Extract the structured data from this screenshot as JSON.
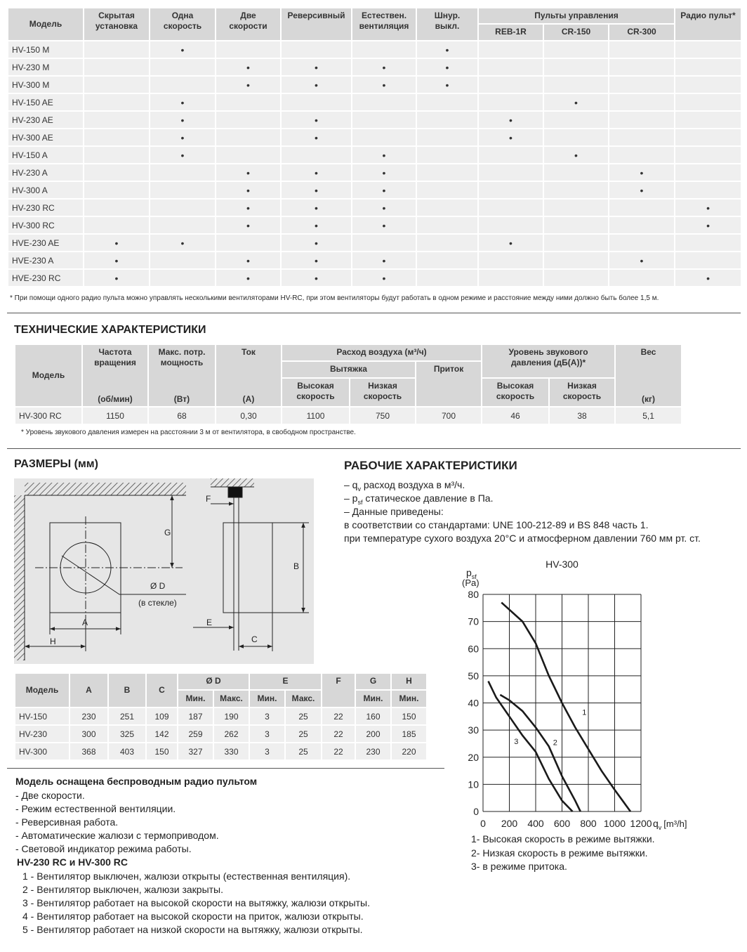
{
  "features_table": {
    "headers": [
      "Модель",
      "Скрытая\nустановка",
      "Одна\nскорость",
      "Две\nскорости",
      "Реверсивный",
      "Естествен.\nвентиляция",
      "Шнур.\nвыкл.",
      "REB-1R",
      "CR-150",
      "CR-300",
      "Радио пульт*"
    ],
    "group_header": "Пульты управления",
    "rows": [
      {
        "model": "HV-150 M",
        "cells": [
          null,
          "•",
          null,
          null,
          null,
          "•",
          null,
          null,
          null,
          null
        ]
      },
      {
        "model": "HV-230 M",
        "cells": [
          null,
          null,
          "•",
          "•",
          "•",
          "•",
          null,
          null,
          null,
          null
        ]
      },
      {
        "model": "HV-300 M",
        "cells": [
          null,
          null,
          "•",
          "•",
          "•",
          "•",
          null,
          null,
          null,
          null
        ]
      },
      {
        "model": "HV-150 AE",
        "cells": [
          null,
          "•",
          null,
          null,
          null,
          null,
          null,
          "•",
          null,
          null
        ]
      },
      {
        "model": "HV-230 AE",
        "cells": [
          null,
          "•",
          null,
          "•",
          null,
          null,
          "•",
          null,
          null,
          null
        ]
      },
      {
        "model": "HV-300 AE",
        "cells": [
          null,
          "•",
          null,
          "•",
          null,
          null,
          "•",
          null,
          null,
          null
        ]
      },
      {
        "model": "HV-150 A",
        "cells": [
          null,
          "•",
          null,
          null,
          "•",
          null,
          null,
          "•",
          null,
          null
        ]
      },
      {
        "model": "HV-230 A",
        "cells": [
          null,
          null,
          "•",
          "•",
          "•",
          null,
          null,
          null,
          "•",
          null
        ]
      },
      {
        "model": "HV-300 A",
        "cells": [
          null,
          null,
          "•",
          "•",
          "•",
          null,
          null,
          null,
          "•",
          null
        ]
      },
      {
        "model": "HV-230 RC",
        "cells": [
          null,
          null,
          "•",
          "•",
          "•",
          null,
          null,
          null,
          null,
          "•"
        ]
      },
      {
        "model": "HV-300 RC",
        "cells": [
          null,
          null,
          "•",
          "•",
          "•",
          null,
          null,
          null,
          null,
          "•"
        ]
      },
      {
        "model": "HVE-230 AE",
        "cells": [
          "•",
          "•",
          null,
          "•",
          null,
          null,
          "•",
          null,
          null,
          null
        ]
      },
      {
        "model": "HVE-230 A",
        "cells": [
          "•",
          null,
          "•",
          "•",
          "•",
          null,
          null,
          null,
          "•",
          null
        ]
      },
      {
        "model": "HVE-230 RC",
        "cells": [
          "•",
          null,
          "•",
          "•",
          "•",
          null,
          null,
          null,
          null,
          "•"
        ]
      }
    ],
    "footnote": "* При помощи одного радио пульта можно управлять несколькими вентиляторами HV-RC, при этом вентиляторы будут работать в одном режиме и расстояние между ними должно быть более 1,5 м."
  },
  "tech": {
    "title": "ТЕХНИЧЕСКИЕ ХАРАКТЕРИСТИКИ",
    "headers": {
      "model": "Модель",
      "speed": {
        "label": "Частота\nвращения",
        "unit": "(об/мин)"
      },
      "power": {
        "label": "Макс. потр.\nмощность",
        "unit": "(Вт)"
      },
      "current": {
        "label": "Ток",
        "unit": "(A)"
      },
      "airflow": "Расход воздуха (м³/ч)",
      "exhaust": "Вытяжка",
      "supply": "Приток",
      "exhaust_high": "Высокая\nскорость",
      "exhaust_low": "Низкая\nскорость",
      "sound": "Уровень звукового\nдавления (дБ(А))*",
      "sound_high": "Высокая\nскорость",
      "sound_low": "Низкая\nскорость",
      "weight": {
        "label": "Вес",
        "unit": "(кг)"
      }
    },
    "rows": [
      [
        "HV-300 RC",
        "1150",
        "68",
        "0,30",
        "1100",
        "750",
        "700",
        "46",
        "38",
        "5,1"
      ]
    ],
    "footnote": "* Уровень звукового давления измерен на расстоянии 3 м от вентилятора, в свободном пространстве."
  },
  "dimensions": {
    "title": "РАЗМЕРЫ (мм)",
    "drawing_labels": {
      "F": "F",
      "G": "G",
      "B": "B",
      "D": "Ø D",
      "glass": "(в стекле)",
      "A": "A",
      "H": "H",
      "E": "E",
      "C": "C"
    },
    "headers": [
      "Модель",
      "A",
      "B",
      "C",
      "Ø D",
      "E",
      "F",
      "G",
      "H"
    ],
    "sub_headers": [
      "Мин.",
      "Макс.",
      "Мин.",
      "Макс.",
      "Мин.",
      "Мин."
    ],
    "rows": [
      [
        "HV-150",
        "230",
        "251",
        "109",
        "187",
        "190",
        "3",
        "25",
        "22",
        "160",
        "150"
      ],
      [
        "HV-230",
        "300",
        "325",
        "142",
        "259",
        "262",
        "3",
        "25",
        "22",
        "200",
        "185"
      ],
      [
        "HV-300",
        "368",
        "403",
        "150",
        "327",
        "330",
        "3",
        "25",
        "22",
        "230",
        "220"
      ]
    ]
  },
  "radio_features": {
    "title": "Модель оснащена беспроводным радио пультом",
    "items": [
      "- Две скорости.",
      "- Режим естественной вентиляции.",
      "- Реверсивная работа.",
      "- Автоматические жалюзи с термоприводом.",
      "- Световой индикатор режима работы."
    ],
    "subtitle": "HV-230 RC и HV-300 RC",
    "modes": [
      "1 - Вентилятор выключен, жалюзи открыты (естественная вентиляция).",
      "2 - Вентилятор выключен, жалюзи закрыты.",
      "3 - Вентилятор работает на высокой скорости на вытяжку, жалюзи открыты.",
      "4 - Вентилятор работает на высокой скорости на приток, жалюзи открыты.",
      "5 - Вентилятор работает на низкой скорости на вытяжку, жалюзи открыты."
    ]
  },
  "performance": {
    "title": "РАБОЧИЕ ХАРАКТЕРИСТИКИ",
    "notes": [
      [
        "– q",
        "v",
        " расход воздуха в м³/ч."
      ],
      [
        "– p",
        "sf",
        " статическое давление в Па."
      ],
      [
        "– Данные приведены:"
      ],
      [
        "в соответствии со стандартами: UNE 100-212-89 и BS 848 часть 1."
      ],
      [
        "при температуре сухого воздуха 20°С и атмосферном давлении 760 мм рт. ст."
      ]
    ]
  },
  "chart_data": {
    "type": "line",
    "title": "HV-300",
    "y_label": {
      "main": "p",
      "sub": "sf",
      "unit": "(Pa)"
    },
    "x_label": {
      "main": "q",
      "sub": "v",
      "unit": "[m³/h]"
    },
    "xlim": [
      0,
      1200
    ],
    "ylim": [
      0,
      80
    ],
    "xticks": [
      0,
      200,
      400,
      600,
      800,
      1000,
      1200
    ],
    "yticks": [
      0,
      10,
      20,
      30,
      40,
      50,
      60,
      70,
      80
    ],
    "grid": true,
    "series": [
      {
        "name": "1",
        "color": "#1a1a1a",
        "x": [
          140,
          300,
          400,
          500,
          600,
          700,
          800,
          900,
          1000,
          1120
        ],
        "values": [
          77,
          70,
          62,
          50,
          40,
          31,
          23,
          15,
          8,
          0
        ]
      },
      {
        "name": "2",
        "color": "#1a1a1a",
        "x": [
          130,
          200,
          300,
          400,
          500,
          600,
          700,
          740
        ],
        "values": [
          43,
          41,
          37,
          31,
          24,
          13,
          4,
          0
        ]
      },
      {
        "name": "3",
        "color": "#1a1a1a",
        "x": [
          40,
          100,
          200,
          300,
          400,
          500,
          600,
          680
        ],
        "values": [
          48,
          42,
          35,
          28,
          22,
          12,
          4,
          0
        ]
      }
    ],
    "captions": [
      "1- Высокая скорость в режиме вытяжки.",
      "2- Низкая скорость в режиме вытяжки.",
      "3- в режиме притока."
    ]
  }
}
